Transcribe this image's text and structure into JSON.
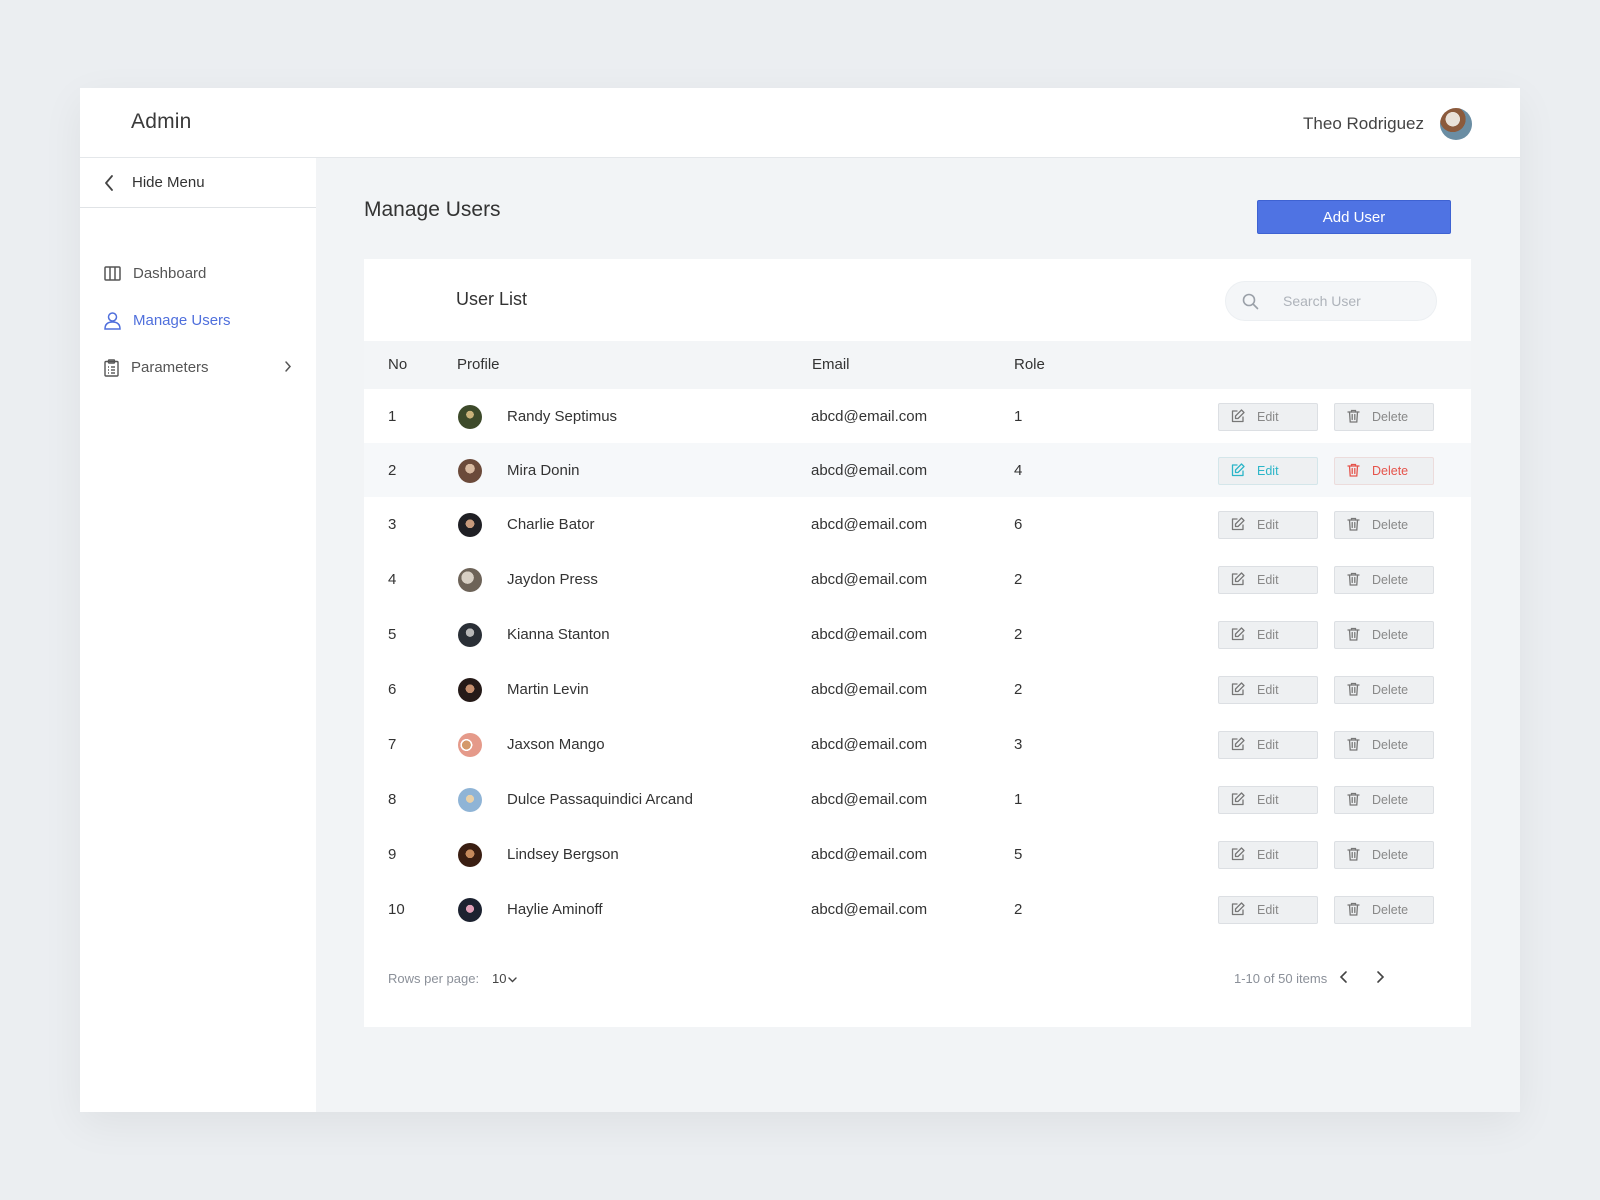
{
  "header": {
    "brand": "Admin",
    "user_name": "Theo Rodriguez"
  },
  "sidebar": {
    "hide_menu_label": "Hide Menu",
    "items": [
      {
        "label": "Dashboard",
        "icon": "columns-icon"
      },
      {
        "label": "Manage Users",
        "icon": "user-icon",
        "active": true
      },
      {
        "label": "Parameters",
        "icon": "clipboard-icon",
        "has_submenu": true
      }
    ]
  },
  "main": {
    "page_title": "Manage Users",
    "add_button": "Add User",
    "card_title": "User List",
    "search_placeholder": "Search User"
  },
  "table": {
    "headers": {
      "no": "No",
      "profile": "Profile",
      "email": "Email",
      "role": "Role"
    },
    "edit_label": "Edit",
    "delete_label": "Delete",
    "rows": [
      {
        "no": "1",
        "name": "Randy Septimus",
        "email": "abcd@email.com",
        "role": "1"
      },
      {
        "no": "2",
        "name": "Mira Donin",
        "email": "abcd@email.com",
        "role": "4"
      },
      {
        "no": "3",
        "name": "Charlie Bator",
        "email": "abcd@email.com",
        "role": "6"
      },
      {
        "no": "4",
        "name": "Jaydon Press",
        "email": "abcd@email.com",
        "role": "2"
      },
      {
        "no": "5",
        "name": "Kianna Stanton",
        "email": "abcd@email.com",
        "role": "2"
      },
      {
        "no": "6",
        "name": "Martin Levin",
        "email": "abcd@email.com",
        "role": "2"
      },
      {
        "no": "7",
        "name": "Jaxson Mango",
        "email": "abcd@email.com",
        "role": "3"
      },
      {
        "no": "8",
        "name": "Dulce Passaquindici Arcand",
        "email": "abcd@email.com",
        "role": "1"
      },
      {
        "no": "9",
        "name": "Lindsey Bergson",
        "email": "abcd@email.com",
        "role": "5"
      },
      {
        "no": "10",
        "name": "Haylie Aminoff",
        "email": "abcd@email.com",
        "role": "2"
      }
    ]
  },
  "pagination": {
    "rows_per_page_label": "Rows per page:",
    "rows_per_page_value": "10",
    "range_text": "1-10 of 50 items"
  },
  "colors": {
    "accent": "#4f73e3",
    "edit_active": "#2bb5c8",
    "delete_active": "#e5534b"
  }
}
